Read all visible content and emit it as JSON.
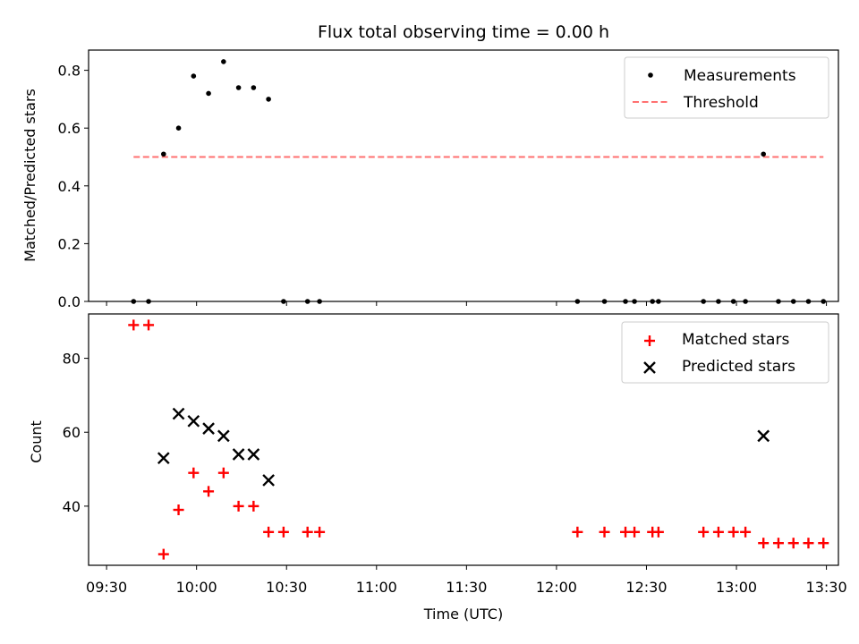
{
  "chart_data": [
    {
      "type": "scatter",
      "title": "Flux total observing time = 0.00 h",
      "xlabel": "",
      "ylabel": "Matched/Predicted stars",
      "ylim": [
        0,
        0.87
      ],
      "yticks": [
        0.0,
        0.2,
        0.4,
        0.6,
        0.8
      ],
      "ytick_labels": [
        "0.0",
        "0.2",
        "0.4",
        "0.6",
        "0.8"
      ],
      "grid": false,
      "legend_position": "top-right",
      "series": [
        {
          "name": "Measurements",
          "marker": "dot",
          "color": "#000000",
          "x": [
            "09:39",
            "09:44",
            "09:49",
            "09:54",
            "09:59",
            "10:04",
            "10:09",
            "10:14",
            "10:19",
            "10:24",
            "10:29",
            "10:37",
            "10:41",
            "12:07",
            "12:16",
            "12:23",
            "12:26",
            "12:32",
            "12:34",
            "12:49",
            "12:54",
            "12:59",
            "13:03",
            "13:09",
            "13:14",
            "13:19",
            "13:24",
            "13:29"
          ],
          "y": [
            0.0,
            0.0,
            0.51,
            0.6,
            0.78,
            0.72,
            0.83,
            0.74,
            0.74,
            0.7,
            0.0,
            0.0,
            0.0,
            0.0,
            0.0,
            0.0,
            0.0,
            0.0,
            0.0,
            0.0,
            0.0,
            0.0,
            0.0,
            0.51,
            0.0,
            0.0,
            0.0,
            0.0
          ]
        },
        {
          "name": "Threshold",
          "marker": "dashed-line",
          "color": "#ff7070",
          "x": [
            "09:39",
            "13:29"
          ],
          "y": [
            0.5,
            0.5
          ]
        }
      ]
    },
    {
      "type": "scatter",
      "title": "",
      "xlabel": "Time (UTC)",
      "ylabel": "Count",
      "xlim": [
        "09:24",
        "13:34"
      ],
      "xticks": [
        "09:30",
        "10:00",
        "10:30",
        "11:00",
        "11:30",
        "12:00",
        "12:30",
        "13:00",
        "13:30"
      ],
      "ylim": [
        24,
        92
      ],
      "yticks": [
        40,
        60,
        80
      ],
      "ytick_labels": [
        "40",
        "60",
        "80"
      ],
      "grid": false,
      "legend_position": "top-right",
      "series": [
        {
          "name": "Matched stars",
          "marker": "plus",
          "color": "#ff0000",
          "x": [
            "09:39",
            "09:44",
            "09:49",
            "09:54",
            "09:59",
            "10:04",
            "10:09",
            "10:14",
            "10:19",
            "10:24",
            "10:29",
            "10:37",
            "10:41",
            "12:07",
            "12:16",
            "12:23",
            "12:26",
            "12:32",
            "12:34",
            "12:49",
            "12:54",
            "12:59",
            "13:03",
            "13:09",
            "13:14",
            "13:19",
            "13:24",
            "13:29"
          ],
          "y": [
            89,
            89,
            27,
            39,
            49,
            44,
            49,
            40,
            40,
            33,
            33,
            33,
            33,
            33,
            33,
            33,
            33,
            33,
            33,
            33,
            33,
            33,
            33,
            30,
            30,
            30,
            30,
            30
          ]
        },
        {
          "name": "Predicted stars",
          "marker": "x",
          "color": "#000000",
          "x": [
            "09:49",
            "09:54",
            "09:59",
            "10:04",
            "10:09",
            "10:14",
            "10:19",
            "10:24",
            "13:09"
          ],
          "y": [
            53,
            65,
            63,
            61,
            59,
            54,
            54,
            47,
            59
          ]
        }
      ]
    }
  ]
}
